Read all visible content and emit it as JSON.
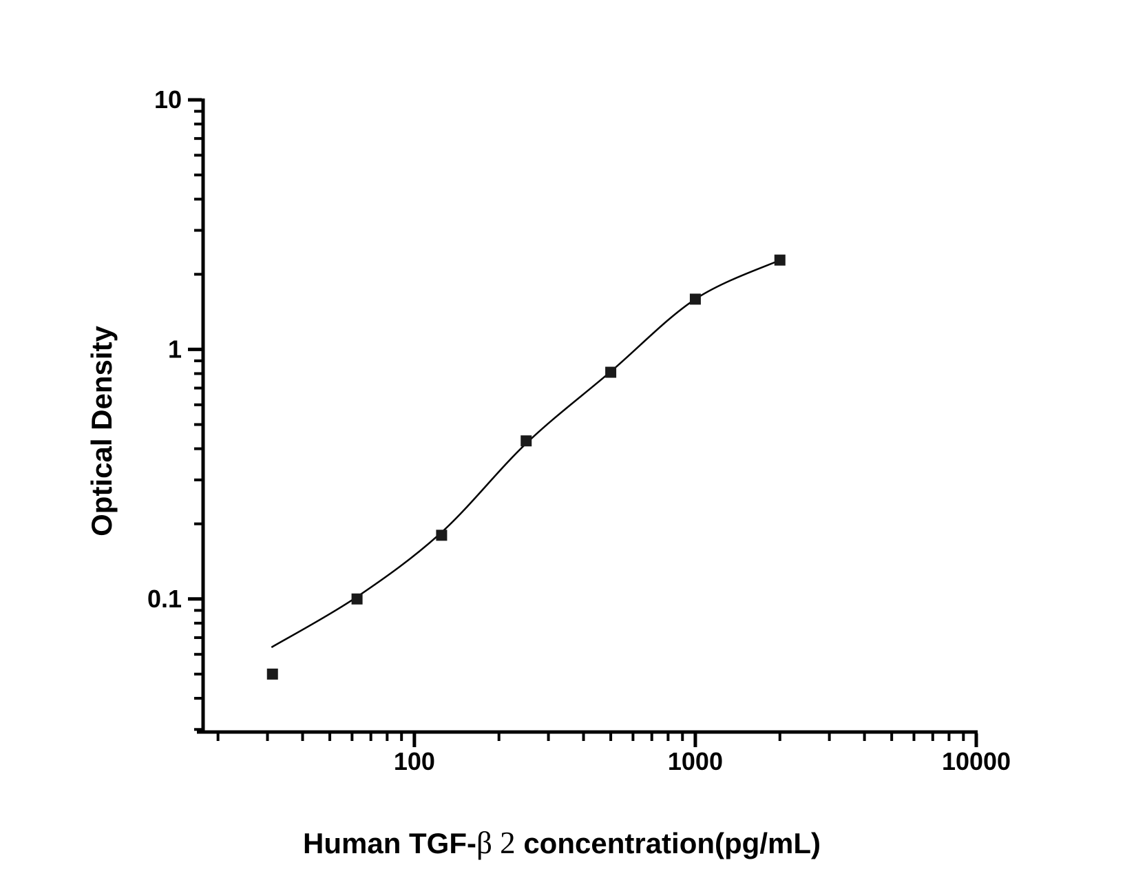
{
  "page": {
    "background_color": "#ffffff"
  },
  "chart_data": {
    "type": "scatter",
    "title": "",
    "ylabel": "Optical Density",
    "xlabel_prefix": "Human TGF-",
    "xlabel_greek": "β 2",
    "xlabel_suffix": " concentration(pg/mL)",
    "x_scale": "log",
    "y_scale": "log",
    "xlim": [
      17.7,
      10000
    ],
    "ylim": [
      0.0293,
      10
    ],
    "grid": false,
    "legend": "none",
    "axis_color": "#000000",
    "marker_color": "#1a1a1a",
    "line_color": "#000000",
    "x_major_ticks": [
      {
        "value": 100,
        "label": "100"
      },
      {
        "value": 1000,
        "label": "1000"
      },
      {
        "value": 10000,
        "label": "10000"
      }
    ],
    "y_major_ticks": [
      {
        "value": 0.1,
        "label": "0.1"
      },
      {
        "value": 1,
        "label": "1"
      },
      {
        "value": 10,
        "label": "10"
      }
    ],
    "series": [
      {
        "name": "standard-data-points",
        "kind": "scatter",
        "marker": "square",
        "points": [
          [
            31.25,
            0.05
          ],
          [
            62.5,
            0.1
          ],
          [
            125,
            0.18
          ],
          [
            250,
            0.43
          ],
          [
            500,
            0.81
          ],
          [
            1000,
            1.59
          ],
          [
            2000,
            2.28
          ]
        ]
      },
      {
        "name": "fit-curve",
        "kind": "line",
        "points": [
          [
            31,
            0.064
          ],
          [
            62.5,
            0.102
          ],
          [
            125,
            0.185
          ],
          [
            250,
            0.42
          ],
          [
            500,
            0.815
          ],
          [
            1000,
            1.59
          ],
          [
            2000,
            2.28
          ]
        ]
      }
    ]
  }
}
